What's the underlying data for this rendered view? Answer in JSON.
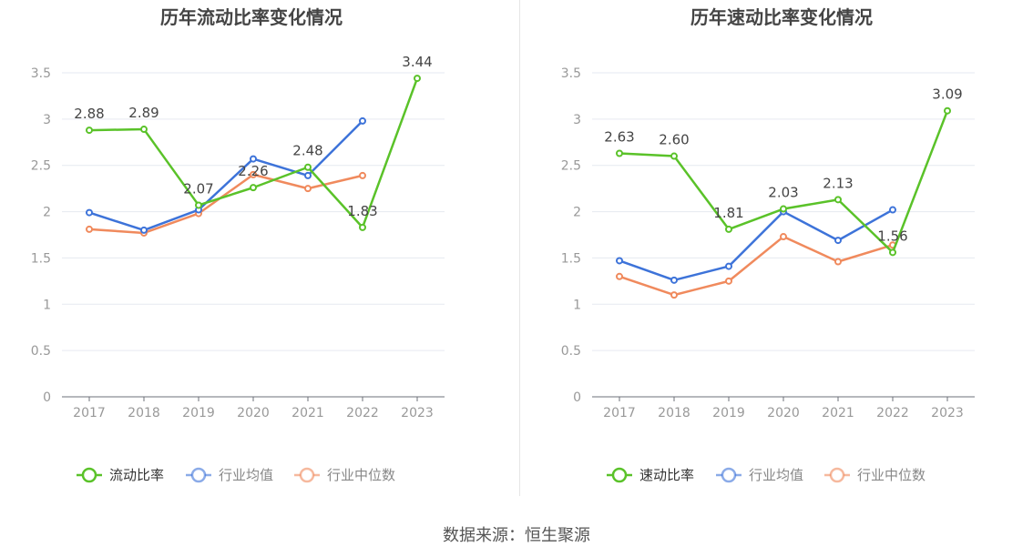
{
  "source": "数据来源：恒生聚源",
  "colors": {
    "primary": "#5ac229",
    "average": "#3d73d9",
    "median": "#f08a5d",
    "axis": "#999999",
    "grid": "#e6e9f0",
    "title": "#444444",
    "label": "#444444"
  },
  "chart_data": [
    {
      "type": "line",
      "title": "历年流动比率变化情况",
      "categories": [
        "2017",
        "2018",
        "2019",
        "2020",
        "2021",
        "2022",
        "2023"
      ],
      "ylim": [
        0,
        3.5
      ],
      "yticks": [
        "0",
        "0.5",
        "1",
        "1.5",
        "2",
        "2.5",
        "3",
        "3.5"
      ],
      "grid": true,
      "legend": "bottom",
      "series": [
        {
          "name": "流动比率",
          "color": "#5ac229",
          "values": [
            2.88,
            2.89,
            2.07,
            2.26,
            2.48,
            1.83,
            3.44
          ],
          "labels": [
            "2.88",
            "2.89",
            "2.07",
            "2.26",
            "2.48",
            "1.83",
            "3.44"
          ]
        },
        {
          "name": "行业均值",
          "color": "#3d73d9",
          "values": [
            1.99,
            1.8,
            2.02,
            2.57,
            2.39,
            2.98,
            null
          ]
        },
        {
          "name": "行业中位数",
          "color": "#f08a5d",
          "values": [
            1.81,
            1.77,
            1.98,
            2.4,
            2.25,
            2.39,
            null
          ]
        }
      ]
    },
    {
      "type": "line",
      "title": "历年速动比率变化情况",
      "categories": [
        "2017",
        "2018",
        "2019",
        "2020",
        "2021",
        "2022",
        "2023"
      ],
      "ylim": [
        0,
        3.5
      ],
      "yticks": [
        "0",
        "0.5",
        "1",
        "1.5",
        "2",
        "2.5",
        "3",
        "3.5"
      ],
      "grid": true,
      "legend": "bottom",
      "series": [
        {
          "name": "速动比率",
          "color": "#5ac229",
          "values": [
            2.63,
            2.6,
            1.81,
            2.03,
            2.13,
            1.56,
            3.09
          ],
          "labels": [
            "2.63",
            "2.60",
            "1.81",
            "2.03",
            "2.13",
            "1.56",
            "3.09"
          ]
        },
        {
          "name": "行业均值",
          "color": "#3d73d9",
          "values": [
            1.47,
            1.26,
            1.41,
            2.0,
            1.69,
            2.02,
            null
          ]
        },
        {
          "name": "行业中位数",
          "color": "#f08a5d",
          "values": [
            1.3,
            1.1,
            1.25,
            1.73,
            1.46,
            1.64,
            null
          ]
        }
      ]
    }
  ]
}
